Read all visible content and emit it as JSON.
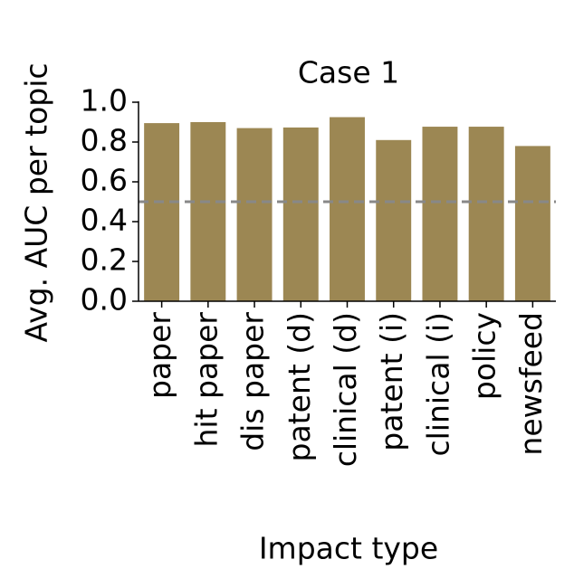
{
  "chart_data": {
    "type": "bar",
    "title": "Case 1",
    "x_label": "Impact type",
    "y_label": "Avg. AUC per topic",
    "categories": [
      "paper",
      "hit paper",
      "dis paper",
      "patent (d)",
      "clinical (d)",
      "patent (i)",
      "clinical (i)",
      "policy",
      "newsfeed"
    ],
    "values": [
      0.895,
      0.9,
      0.87,
      0.873,
      0.925,
      0.81,
      0.877,
      0.877,
      0.78
    ],
    "color": "#9c8753",
    "ylim": [
      0,
      1
    ],
    "yticks": [
      {
        "value": 0,
        "label": "0.0"
      },
      0.2,
      0.4,
      0.6,
      0.8,
      {
        "value": 1,
        "label": "1.0"
      }
    ],
    "reference_line": 0.5,
    "reference_color": "#888888",
    "grid": false
  }
}
